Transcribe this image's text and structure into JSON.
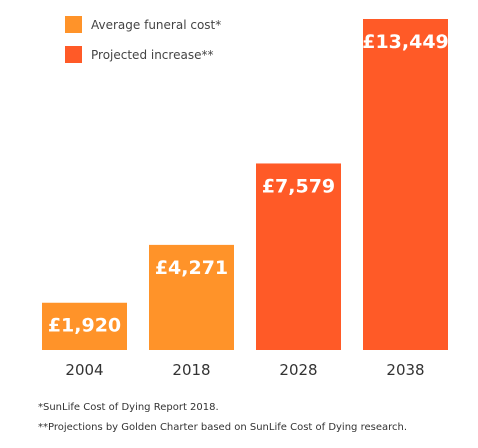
{
  "chart_data": {
    "type": "bar",
    "categories": [
      "2004",
      "2018",
      "2028",
      "2038"
    ],
    "values": [
      1920,
      4271,
      7579,
      13449
    ],
    "value_labels": [
      "£1,920",
      "£4,271",
      "£7,579",
      "£13,449"
    ],
    "bar_series": [
      0,
      0,
      1,
      1
    ],
    "series": [
      {
        "name": "Average funeral cost*",
        "color": "#FF9329"
      },
      {
        "name": "Projected increase**",
        "color": "#FF5A27"
      }
    ],
    "ylim": [
      0,
      13449
    ],
    "grid": false,
    "legend_position": "top-left",
    "title": "",
    "xlabel": "",
    "ylabel": ""
  },
  "footnotes": [
    "*SunLife Cost of Dying Report 2018.",
    "**Projections by Golden Charter based on SunLife Cost of Dying research."
  ]
}
